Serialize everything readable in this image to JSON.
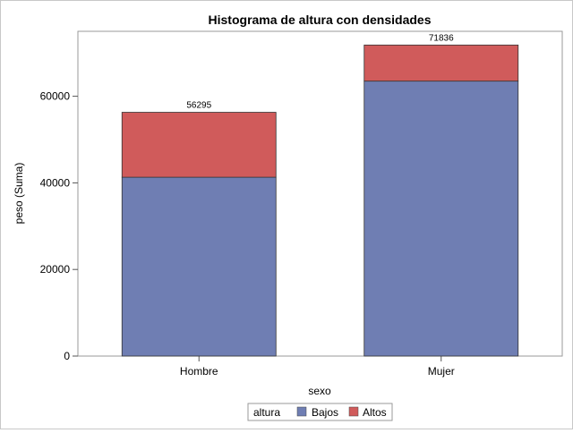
{
  "chart_data": {
    "type": "bar",
    "stacked": true,
    "title": "Histograma de altura con densidades",
    "xlabel": "sexo",
    "ylabel": "peso (Suma)",
    "categories": [
      "Hombre",
      "Mujer"
    ],
    "series": [
      {
        "name": "Bajos",
        "values": [
          41300,
          63500
        ],
        "color": "#6f7eb3"
      },
      {
        "name": "Altos",
        "values": [
          14995,
          8336
        ],
        "color": "#d05b5b"
      }
    ],
    "totals": [
      "56295",
      "71836"
    ],
    "ylim": [
      0,
      75000
    ],
    "yticks": [
      0,
      20000,
      40000,
      60000
    ],
    "grid": false,
    "legend": {
      "title": "altura",
      "placement": "bottom-center"
    }
  }
}
